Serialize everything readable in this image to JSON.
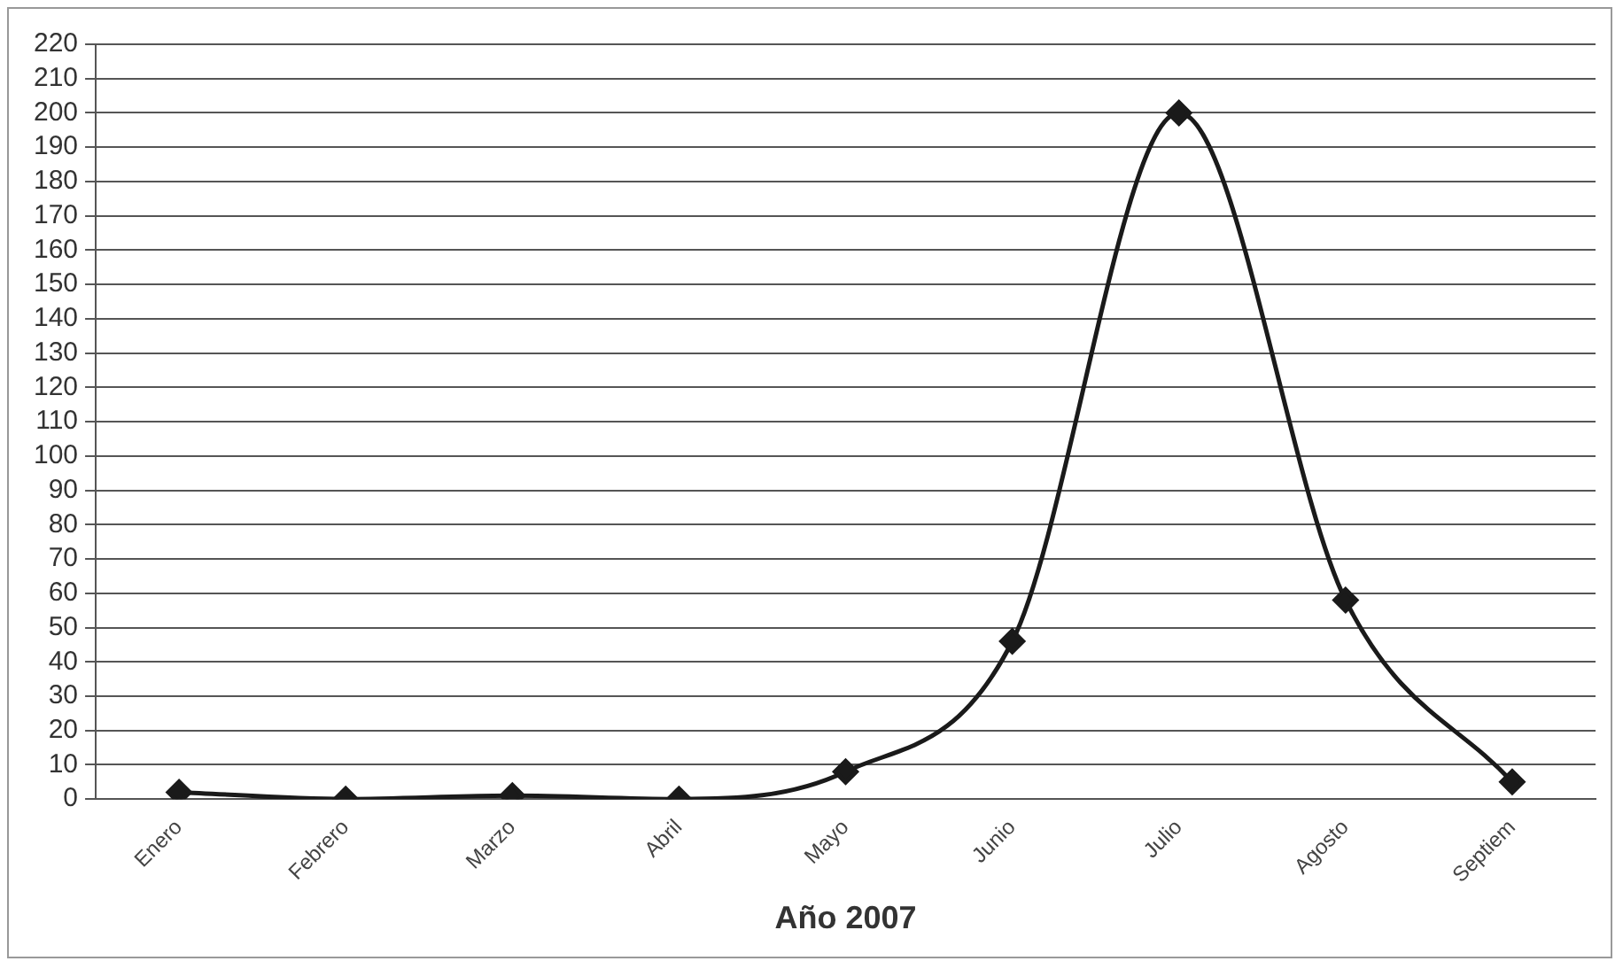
{
  "chart_data": {
    "type": "line",
    "xlabel": "Año 2007",
    "categories": [
      "Enero",
      "Febrero",
      "Marzo",
      "Abril",
      "Mayo",
      "Junio",
      "Julio",
      "Agosto",
      "Septiem"
    ],
    "series": [
      {
        "color": "#1a1a1a",
        "values": [
          2,
          0,
          1,
          0,
          8,
          46,
          200,
          58,
          5
        ]
      }
    ],
    "ylim": [
      0,
      220
    ],
    "yticks": [
      0,
      10,
      20,
      30,
      40,
      50,
      60,
      70,
      80,
      90,
      100,
      110,
      120,
      130,
      140,
      150,
      160,
      170,
      180,
      190,
      200,
      210,
      220
    ],
    "grid": "y",
    "legend": false,
    "marker": "diamond",
    "line_style": "solid"
  }
}
